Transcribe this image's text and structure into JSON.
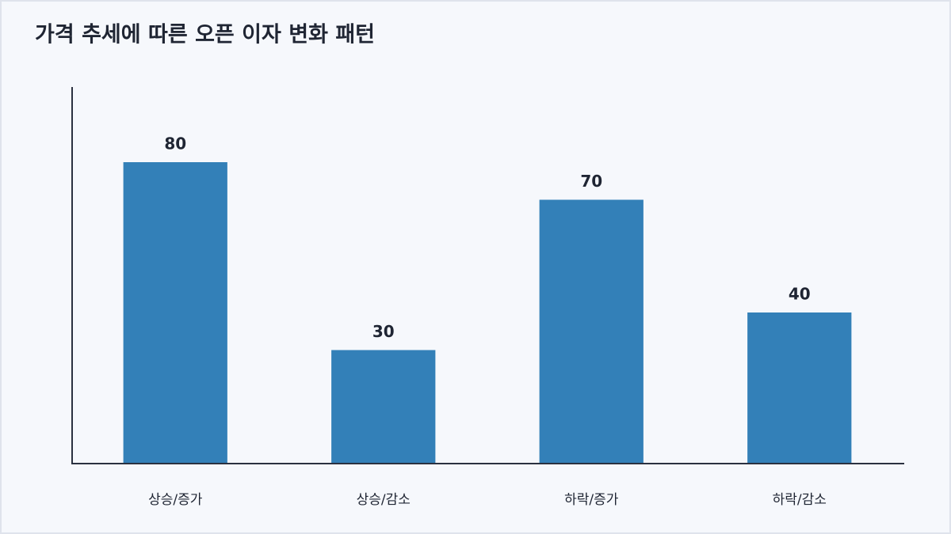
{
  "chart_data": {
    "type": "bar",
    "title": "가격 추세에 따른 오픈 이자 변화 패턴",
    "categories": [
      "상승/증가",
      "상승/감소",
      "하락/증가",
      "하락/감소"
    ],
    "values": [
      80,
      30,
      70,
      40
    ],
    "color": "#3380b8",
    "ylim": [
      0,
      100
    ]
  }
}
